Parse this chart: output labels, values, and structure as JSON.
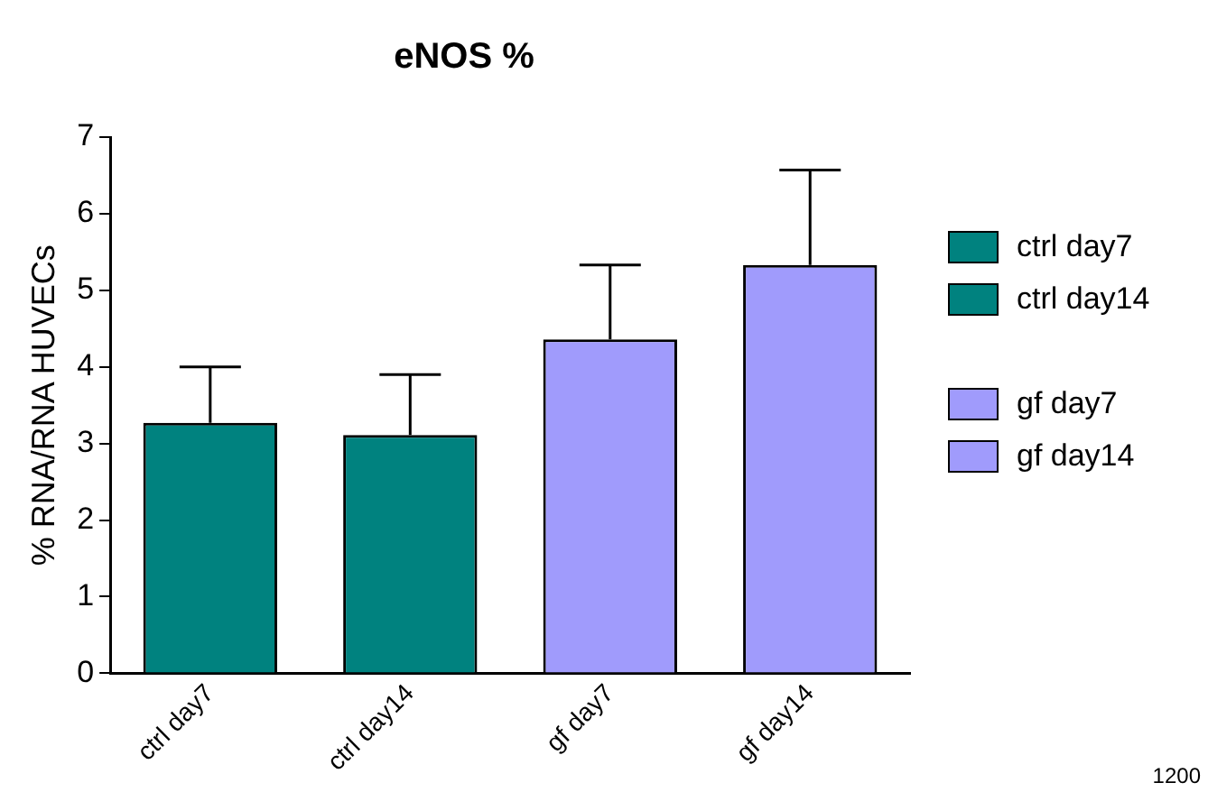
{
  "chart_data": {
    "type": "bar",
    "title": "eNOS %",
    "ylabel": "% RNA/RNA HUVECs",
    "categories": [
      "ctrl day7",
      "ctrl day14",
      "gf day7",
      "gf day14"
    ],
    "series": [
      {
        "name": "ctrl day7",
        "color": "#00827f",
        "values": [
          3.27,
          null,
          null,
          null
        ],
        "errors": [
          [
            3.27,
            4.0
          ],
          null,
          null,
          null
        ]
      },
      {
        "name": "ctrl day14",
        "color": "#00827f",
        "values": [
          null,
          3.11,
          null,
          null
        ],
        "errors": [
          null,
          [
            3.11,
            3.9
          ],
          null,
          null
        ]
      },
      {
        "name": "gf day7",
        "color": "#a09bfc",
        "values": [
          null,
          null,
          4.36,
          null
        ],
        "errors": [
          null,
          null,
          [
            4.36,
            5.33
          ],
          null
        ]
      },
      {
        "name": "gf day14",
        "color": "#a09bfc",
        "values": [
          null,
          null,
          null,
          5.33
        ],
        "errors": [
          null,
          null,
          null,
          [
            5.33,
            6.57
          ]
        ]
      }
    ],
    "ylim": [
      0,
      7
    ],
    "yticks": [
      0,
      1,
      2,
      3,
      4,
      5,
      6,
      7
    ],
    "grid": false,
    "legend": "right",
    "annotations": [
      "1200"
    ]
  }
}
